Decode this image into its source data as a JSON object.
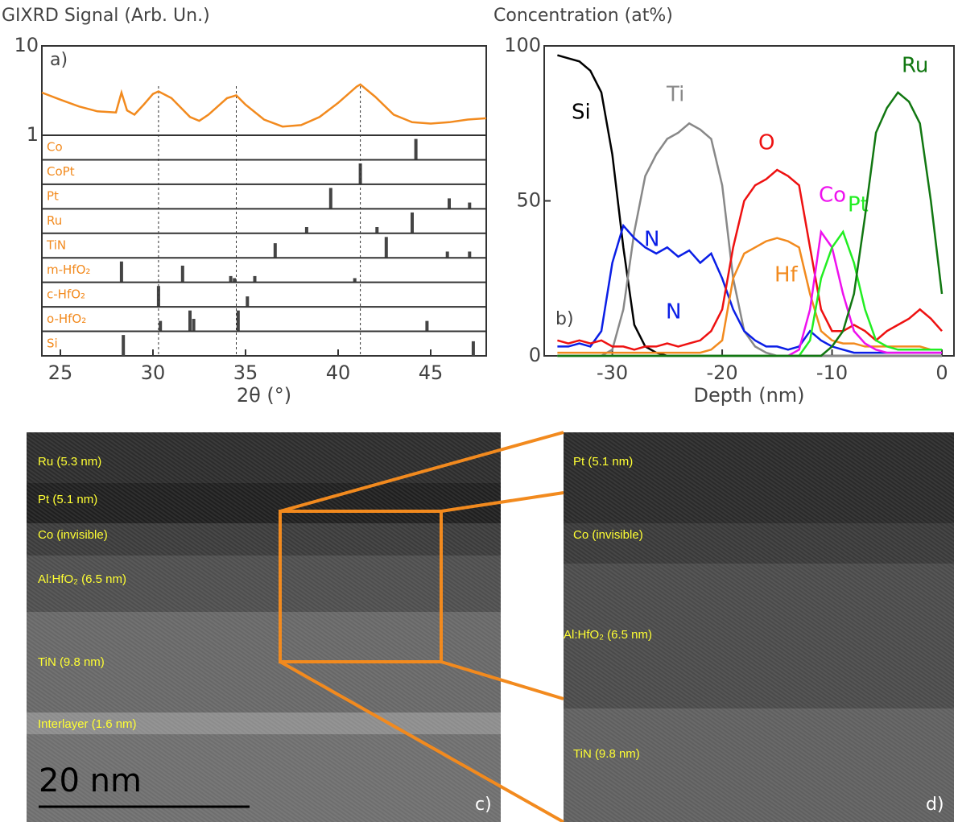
{
  "chart_data": [
    {
      "type": "line",
      "panel_label": "a)",
      "y_label": "GIXRD Signal (Arb. Un.)",
      "x_label": "2θ (°)",
      "xlim": [
        24,
        48
      ],
      "xticks": [
        25,
        30,
        35,
        40,
        45
      ],
      "ylim": [
        1,
        10
      ],
      "yticks": [
        1,
        10
      ],
      "y_log_scale": true,
      "x": [
        24,
        25,
        26,
        27,
        28,
        28.3,
        28.6,
        29,
        29.5,
        30,
        30.3,
        31,
        32,
        32.5,
        33,
        34,
        34.5,
        35,
        36,
        37,
        38,
        39,
        40,
        41,
        41.2,
        42,
        43,
        44,
        45,
        46,
        47,
        48
      ],
      "series": [
        {
          "color": "#f28a1e",
          "values": [
            3.0,
            2.5,
            2.1,
            1.85,
            1.8,
            3.0,
            1.9,
            1.7,
            2.2,
            2.9,
            3.1,
            2.6,
            1.6,
            1.45,
            1.7,
            2.6,
            2.8,
            2.2,
            1.5,
            1.25,
            1.3,
            1.6,
            2.3,
            3.5,
            3.7,
            2.7,
            1.7,
            1.4,
            1.35,
            1.4,
            1.5,
            1.55
          ]
        }
      ],
      "marker_lines": [
        30.3,
        34.5,
        41.2
      ],
      "references": [
        {
          "name": "Co",
          "peaks": [
            44.2
          ],
          "intensities": [
            1.0
          ]
        },
        {
          "name": "CoPt",
          "peaks": [
            41.2
          ],
          "intensities": [
            1.0
          ]
        },
        {
          "name": "Pt",
          "peaks": [
            39.6,
            46.0,
            47.1
          ],
          "intensities": [
            1.0,
            0.5,
            0.3
          ]
        },
        {
          "name": "Ru",
          "peaks": [
            38.3,
            42.1,
            44.0
          ],
          "intensities": [
            0.3,
            0.3,
            1.0
          ]
        },
        {
          "name": "TiN",
          "peaks": [
            36.6,
            42.6,
            45.9,
            47.1
          ],
          "intensities": [
            0.7,
            1.0,
            0.3,
            0.3
          ]
        },
        {
          "name": "m-HfO₂",
          "peaks": [
            28.3,
            31.6,
            34.2,
            34.4,
            35.5,
            40.9
          ],
          "intensities": [
            1.0,
            0.8,
            0.3,
            0.2,
            0.3,
            0.2
          ]
        },
        {
          "name": "c-HfO₂",
          "peaks": [
            30.3,
            35.1
          ],
          "intensities": [
            1.0,
            0.5
          ]
        },
        {
          "name": "o-HfO₂",
          "peaks": [
            30.4,
            32.0,
            32.2,
            34.6,
            44.8
          ],
          "intensities": [
            0.5,
            1.0,
            0.6,
            1.0,
            0.5
          ]
        },
        {
          "name": "Si",
          "peaks": [
            28.4,
            47.3
          ],
          "intensities": [
            1.0,
            0.7
          ]
        }
      ],
      "reference_color": "#444444",
      "reference_label_color": "#f28a1e"
    },
    {
      "type": "line",
      "panel_label": "b)",
      "y_label": "Concentration (at%)",
      "x_label": "Depth (nm)",
      "xlim": [
        -36.2,
        1.1
      ],
      "xticks": [
        -30,
        -20,
        -10,
        0
      ],
      "ylim": [
        0,
        100
      ],
      "yticks": [
        0,
        50,
        100
      ],
      "x": [
        -35,
        -34,
        -33,
        -32,
        -31,
        -30,
        -29,
        -28,
        -27,
        -26,
        -25,
        -24,
        -23,
        -22,
        -21,
        -20,
        -19,
        -18,
        -17,
        -16,
        -15,
        -14,
        -13,
        -12,
        -11,
        -10,
        -9,
        -8,
        -7,
        -6,
        -5,
        -4,
        -3,
        -2,
        -1,
        0
      ],
      "series": [
        {
          "name": "Si",
          "color": "#000000",
          "values": [
            97,
            96,
            95,
            92,
            85,
            65,
            35,
            10,
            3,
            1,
            0,
            0,
            0,
            0,
            0,
            0,
            0,
            0,
            0,
            0,
            0,
            0,
            0,
            0,
            0,
            0,
            0,
            0,
            0,
            0,
            0,
            0,
            0,
            0,
            0,
            0
          ]
        },
        {
          "name": "Ti",
          "color": "#888888",
          "values": [
            0,
            0,
            0,
            0,
            0,
            2,
            15,
            40,
            58,
            65,
            70,
            72,
            75,
            73,
            70,
            55,
            25,
            8,
            3,
            1,
            0,
            0,
            0,
            0,
            0,
            0,
            0,
            0,
            0,
            0,
            0,
            0,
            0,
            0,
            0,
            0
          ]
        },
        {
          "name": "N",
          "color": "#0a1ee6",
          "values": [
            3,
            3,
            4,
            3,
            8,
            30,
            42,
            38,
            35,
            33,
            35,
            32,
            34,
            30,
            33,
            25,
            15,
            8,
            5,
            3,
            3,
            2,
            3,
            8,
            5,
            3,
            2,
            1,
            1,
            1,
            1,
            1,
            1,
            1,
            1,
            1
          ]
        },
        {
          "name": "O",
          "color": "#ee1111",
          "values": [
            5,
            4,
            5,
            4,
            5,
            3,
            3,
            2,
            3,
            3,
            4,
            3,
            4,
            5,
            8,
            15,
            35,
            50,
            55,
            57,
            60,
            58,
            55,
            35,
            15,
            8,
            8,
            10,
            8,
            5,
            8,
            10,
            12,
            15,
            12,
            8
          ]
        },
        {
          "name": "Hf",
          "color": "#f28a1e",
          "values": [
            1,
            1,
            1,
            1,
            1,
            1,
            1,
            1,
            1,
            1,
            1,
            1,
            1,
            1,
            2,
            5,
            25,
            33,
            35,
            37,
            38,
            37,
            35,
            20,
            8,
            5,
            4,
            4,
            3,
            3,
            3,
            3,
            3,
            3,
            2,
            2
          ]
        },
        {
          "name": "Co",
          "color": "#ee11ee",
          "values": [
            0,
            0,
            0,
            0,
            0,
            0,
            0,
            0,
            0,
            0,
            0,
            0,
            0,
            0,
            0,
            0,
            0,
            0,
            0,
            0,
            0,
            0,
            2,
            15,
            40,
            35,
            20,
            8,
            4,
            2,
            1,
            1,
            1,
            1,
            1,
            1
          ]
        },
        {
          "name": "Pt",
          "color": "#22ee22",
          "values": [
            0,
            0,
            0,
            0,
            0,
            0,
            0,
            0,
            0,
            0,
            0,
            0,
            0,
            0,
            0,
            0,
            0,
            0,
            0,
            0,
            0,
            0,
            0,
            5,
            25,
            35,
            40,
            30,
            15,
            5,
            3,
            2,
            2,
            2,
            2,
            2
          ]
        },
        {
          "name": "Ru",
          "color": "#117711",
          "values": [
            0,
            0,
            0,
            0,
            0,
            0,
            0,
            0,
            0,
            0,
            0,
            0,
            0,
            0,
            0,
            0,
            0,
            0,
            0,
            0,
            0,
            0,
            0,
            0,
            0,
            3,
            8,
            20,
            45,
            72,
            80,
            85,
            82,
            75,
            50,
            20
          ]
        }
      ]
    }
  ],
  "panels": {
    "c": {
      "label": "c)",
      "scale_bar": "20 nm",
      "layers": [
        "Ru (5.3 nm)",
        "Pt (5.1 nm)",
        "Co (invisible)",
        "Al:HfO₂ (6.5 nm)",
        "TiN (9.8 nm)",
        "Interlayer (1.6 nm)"
      ]
    },
    "d": {
      "label": "d)",
      "layers": [
        "Pt (5.1 nm)",
        "Co (invisible)",
        "Al:HfO₂ (6.5 nm)",
        "TiN (9.8 nm)"
      ]
    }
  }
}
